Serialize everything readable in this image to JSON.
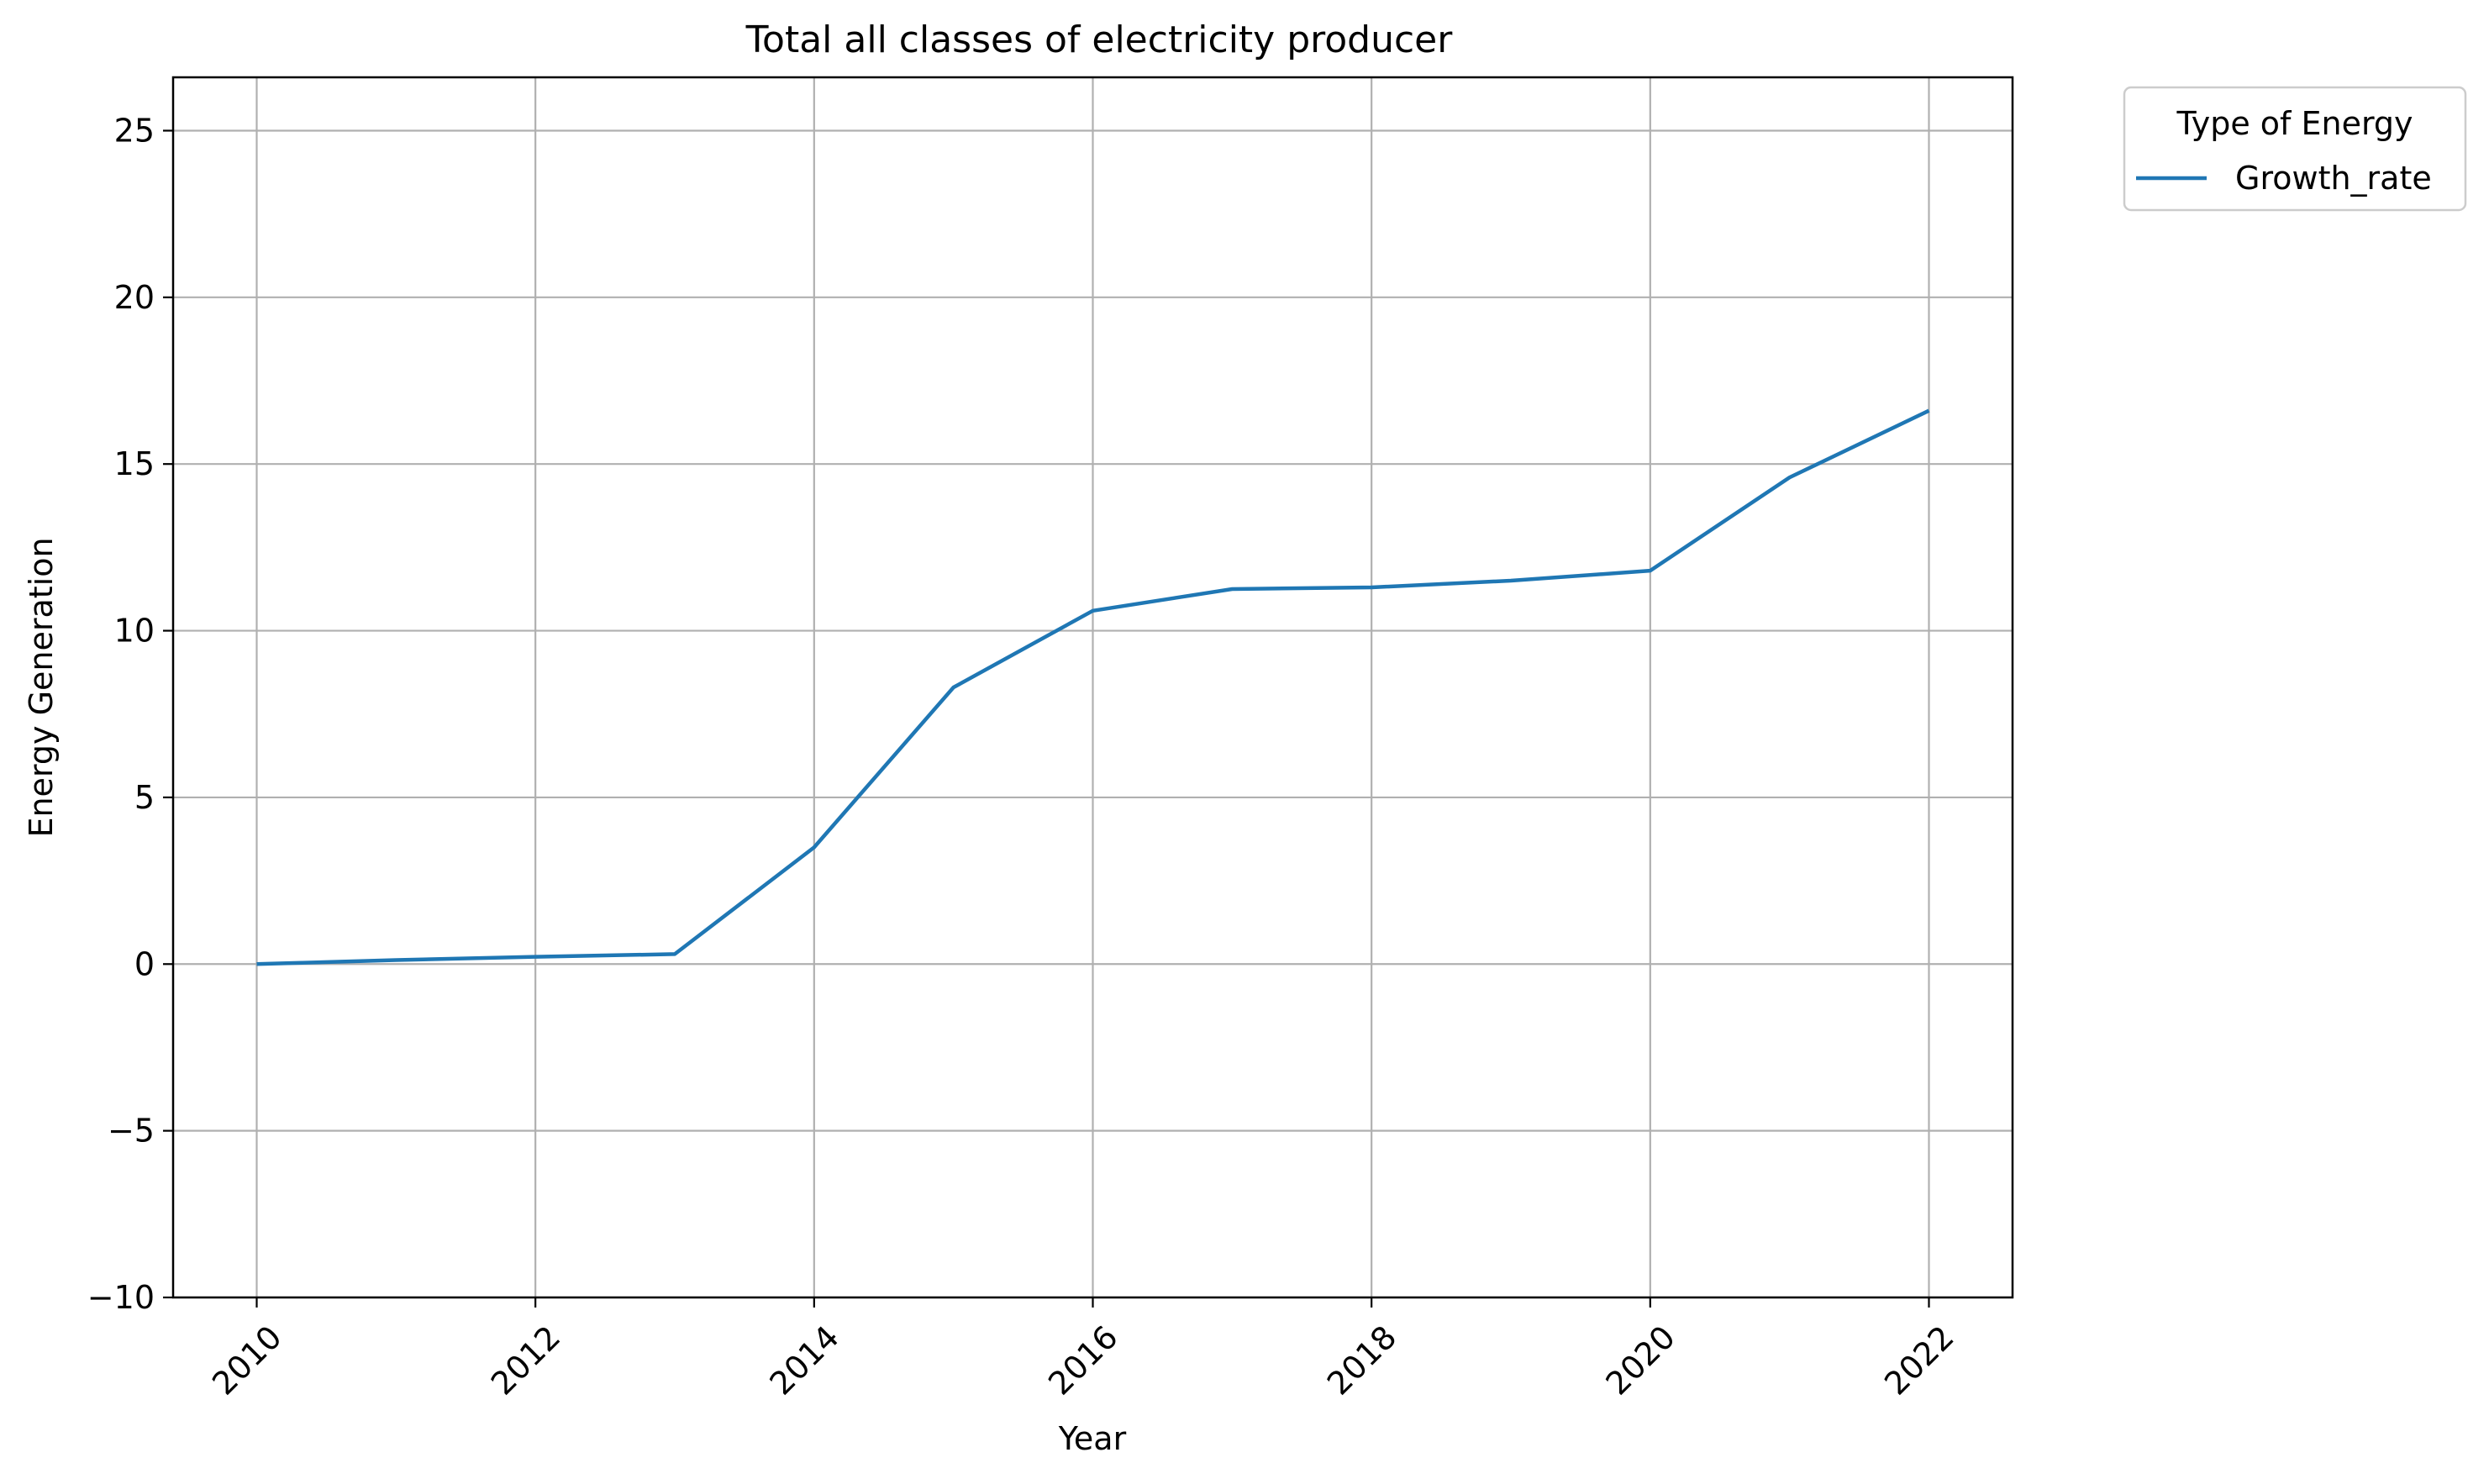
{
  "chart_data": {
    "type": "line",
    "title": "Total all classes of electricity producer",
    "xlabel": "Year",
    "ylabel": "Energy Generation",
    "x": [
      2010,
      2011,
      2012,
      2013,
      2014,
      2015,
      2016,
      2017,
      2018,
      2019,
      2020,
      2021,
      2022
    ],
    "series": [
      {
        "name": "Growth_rate",
        "color": "#1f77b4",
        "values": [
          0.0,
          0.12,
          0.22,
          0.3,
          3.5,
          8.3,
          10.6,
          11.25,
          11.3,
          11.5,
          11.8,
          14.6,
          16.6
        ]
      }
    ],
    "xlim": [
      2009.4,
      2022.6
    ],
    "ylim": [
      -10,
      26.6
    ],
    "xticks": [
      2010,
      2012,
      2014,
      2016,
      2018,
      2020,
      2022
    ],
    "xtick_labels": [
      "2010",
      "2012",
      "2014",
      "2016",
      "2018",
      "2020",
      "2022"
    ],
    "xtick_rotation": 45,
    "yticks": [
      -10,
      -5,
      0,
      5,
      10,
      15,
      20,
      25
    ],
    "ytick_labels": [
      "−10",
      "−5",
      "0",
      "5",
      "10",
      "15",
      "20",
      "25"
    ],
    "grid": true,
    "grid_color": "#b0b0b0",
    "legend": {
      "title": "Type of Energy",
      "placement": "outside-upper-right"
    }
  }
}
